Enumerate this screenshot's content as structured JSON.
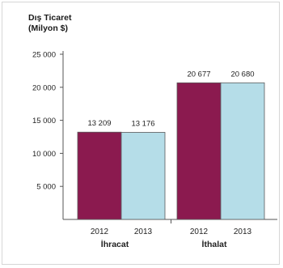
{
  "chart_data": {
    "type": "bar",
    "title_lines": [
      "Dış Ticaret",
      "(Milyon $)"
    ],
    "groups": [
      {
        "name": "İhracat",
        "bars": [
          {
            "category": "2012",
            "value": 13209,
            "label": "13 209",
            "color": "#8b1a4f"
          },
          {
            "category": "2013",
            "value": 13176,
            "label": "13 176",
            "color": "#b5dde8"
          }
        ]
      },
      {
        "name": "İthalat",
        "bars": [
          {
            "category": "2012",
            "value": 20677,
            "label": "20 677",
            "color": "#8b1a4f"
          },
          {
            "category": "2013",
            "value": 20680,
            "label": "20 680",
            "color": "#b5dde8"
          }
        ]
      }
    ],
    "y_ticks": [
      {
        "value": 5000,
        "label": "5 000"
      },
      {
        "value": 10000,
        "label": "10 000"
      },
      {
        "value": 15000,
        "label": "15 000"
      },
      {
        "value": 20000,
        "label": "20 000"
      },
      {
        "value": 25000,
        "label": "25 000"
      }
    ],
    "ylim": [
      0,
      25000
    ],
    "grid": false,
    "legend": "none"
  }
}
